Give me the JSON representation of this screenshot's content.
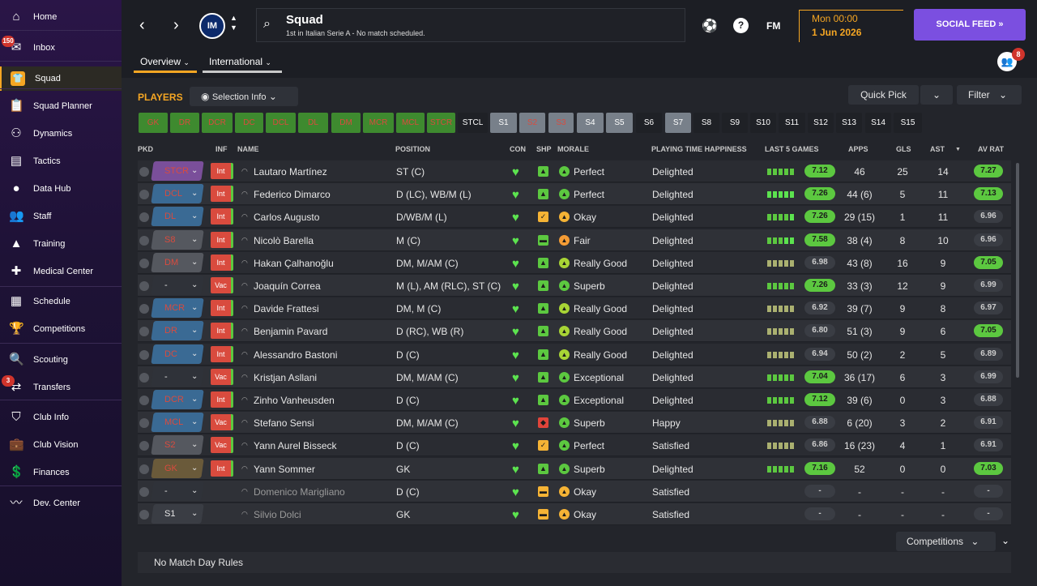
{
  "sidebar": {
    "items": [
      {
        "label": "Home",
        "icon": "home-icon",
        "glyph": "⌂"
      },
      {
        "label": "Inbox",
        "icon": "inbox-icon",
        "glyph": "✉",
        "badge": "150"
      },
      {
        "label": "Squad",
        "icon": "squad-icon",
        "glyph": "👕",
        "active": true
      },
      {
        "label": "Squad Planner",
        "icon": "clipboard-icon",
        "glyph": "📋"
      },
      {
        "label": "Dynamics",
        "icon": "dynamics-icon",
        "glyph": "⚇"
      },
      {
        "label": "Tactics",
        "icon": "tactics-icon",
        "glyph": "▤"
      },
      {
        "label": "Data Hub",
        "icon": "data-hub-icon",
        "glyph": "●"
      },
      {
        "label": "Staff",
        "icon": "staff-icon",
        "glyph": "👥"
      },
      {
        "label": "Training",
        "icon": "training-icon",
        "glyph": "▲"
      },
      {
        "label": "Medical Center",
        "icon": "medical-icon",
        "glyph": "✚"
      },
      {
        "label": "Schedule",
        "icon": "schedule-icon",
        "glyph": "▦"
      },
      {
        "label": "Competitions",
        "icon": "trophy-icon",
        "glyph": "🏆"
      },
      {
        "label": "Scouting",
        "icon": "scouting-icon",
        "glyph": "🔍"
      },
      {
        "label": "Transfers",
        "icon": "transfers-icon",
        "glyph": "⇄",
        "badge": "3"
      },
      {
        "label": "Club Info",
        "icon": "shield-icon",
        "glyph": "⛉"
      },
      {
        "label": "Club Vision",
        "icon": "briefcase-icon",
        "glyph": "💼"
      },
      {
        "label": "Finances",
        "icon": "finances-icon",
        "glyph": "💲"
      },
      {
        "label": "Dev. Center",
        "icon": "dev-center-icon",
        "glyph": "〰"
      }
    ]
  },
  "topbar": {
    "title": "Squad",
    "subtitle": "1st in Italian Serie A - No match scheduled.",
    "club_badge": "IM",
    "fm_label": "FM",
    "day_time": "Mon 00:00",
    "date": "1 Jun 2026",
    "social_feed": "SOCIAL FEED",
    "notifications_badge": "8",
    "tabs": [
      "Overview",
      "International"
    ]
  },
  "toolbar": {
    "players_label": "PLAYERS",
    "selection_info": "Selection Info",
    "quick_pick": "Quick Pick",
    "filter": "Filter"
  },
  "positions": [
    {
      "label": "GK",
      "style": "green"
    },
    {
      "label": "DR",
      "style": "green"
    },
    {
      "label": "DCR",
      "style": "green"
    },
    {
      "label": "DC",
      "style": "green"
    },
    {
      "label": "DCL",
      "style": "green"
    },
    {
      "label": "DL",
      "style": "green"
    },
    {
      "label": "DM",
      "style": "green"
    },
    {
      "label": "MCR",
      "style": "green"
    },
    {
      "label": "MCL",
      "style": "green"
    },
    {
      "label": "STCR",
      "style": "green"
    },
    {
      "label": "STCL",
      "style": "dark"
    },
    {
      "label": "S1",
      "style": "grey"
    },
    {
      "label": "S2",
      "style": "grey-red"
    },
    {
      "label": "S3",
      "style": "grey-red"
    },
    {
      "label": "S4",
      "style": "grey"
    },
    {
      "label": "S5",
      "style": "grey"
    },
    {
      "label": "S6",
      "style": "dark"
    },
    {
      "label": "S7",
      "style": "grey"
    },
    {
      "label": "S8",
      "style": "dark"
    },
    {
      "label": "S9",
      "style": "dark"
    },
    {
      "label": "S10",
      "style": "dark"
    },
    {
      "label": "S11",
      "style": "dark"
    },
    {
      "label": "S12",
      "style": "dark"
    },
    {
      "label": "S13",
      "style": "dark"
    },
    {
      "label": "S14",
      "style": "dark"
    },
    {
      "label": "S15",
      "style": "dark"
    }
  ],
  "columns": [
    "PKD",
    "INF",
    "NAME",
    "POSITION",
    "CON",
    "SHP",
    "MORALE",
    "PLAYING TIME HAPPINESS",
    "LAST 5 GAMES",
    "APPS",
    "GLS",
    "AST",
    "AV RAT"
  ],
  "players": [
    {
      "pkd": "STCR",
      "pkd_color": "#7a4f9a",
      "inf": "Int",
      "name": "Lautaro Martínez",
      "position": "ST (C)",
      "shp": "green",
      "morale": "Perfect",
      "morale_color": "#5cc840",
      "happiness": "Delighted",
      "last5": [
        1,
        1,
        1,
        1,
        1
      ],
      "last_rating": "7.12",
      "rating_green": true,
      "apps": "46",
      "gls": "25",
      "ast": "14",
      "avrat": "7.27",
      "avrat_green": true
    },
    {
      "pkd": "DCL",
      "pkd_color": "#3a6a94",
      "inf": "Int",
      "name": "Federico Dimarco",
      "position": "D (LC), WB/M (L)",
      "shp": "green",
      "morale": "Perfect",
      "morale_color": "#5cc840",
      "happiness": "Delighted",
      "last5": [
        2,
        2,
        2,
        2,
        2
      ],
      "last_rating": "7.26",
      "rating_green": true,
      "apps": "44 (6)",
      "gls": "5",
      "ast": "11",
      "avrat": "7.13",
      "avrat_green": true
    },
    {
      "pkd": "DL",
      "pkd_color": "#3a6a94",
      "inf": "Int",
      "name": "Carlos Augusto",
      "position": "D/WB/M (L)",
      "shp": "yellow",
      "morale": "Okay",
      "morale_color": "#f5b335",
      "happiness": "Delighted",
      "last5": [
        1,
        1,
        1,
        1,
        2
      ],
      "last_rating": "7.26",
      "rating_green": true,
      "apps": "29 (15)",
      "gls": "1",
      "ast": "11",
      "avrat": "6.96",
      "avrat_green": false
    },
    {
      "pkd": "S8",
      "pkd_color": "#55585f",
      "inf": "Int",
      "name": "Nicolò Barella",
      "position": "M (C)",
      "shp": "green-dash",
      "morale": "Fair",
      "morale_color": "#f59c35",
      "happiness": "Delighted",
      "last5": [
        1,
        1,
        1,
        2,
        2
      ],
      "last_rating": "7.58",
      "rating_green": true,
      "apps": "38 (4)",
      "gls": "8",
      "ast": "10",
      "avrat": "6.96",
      "avrat_green": false
    },
    {
      "pkd": "DM",
      "pkd_color": "#55585f",
      "inf": "Int",
      "name": "Hakan Çalhanoğlu",
      "position": "DM, M/AM (C)",
      "shp": "green",
      "morale": "Really Good",
      "morale_color": "#a8d435",
      "happiness": "Delighted",
      "last5": [
        0,
        0,
        0,
        0,
        0
      ],
      "last_rating": "6.98",
      "rating_green": false,
      "apps": "43 (8)",
      "gls": "16",
      "ast": "9",
      "avrat": "7.05",
      "avrat_green": true
    },
    {
      "pkd": "-",
      "pkd_color": "#2f3239",
      "inf": "Vac",
      "name": "Joaquín Correa",
      "position": "M (L), AM (RLC), ST (C)",
      "shp": "green",
      "morale": "Superb",
      "morale_color": "#5cc840",
      "happiness": "Delighted",
      "last5": [
        1,
        1,
        1,
        1,
        1
      ],
      "last_rating": "7.26",
      "rating_green": true,
      "apps": "33 (3)",
      "gls": "12",
      "ast": "9",
      "avrat": "6.99",
      "avrat_green": false
    },
    {
      "pkd": "MCR",
      "pkd_color": "#3a6a94",
      "inf": "Int",
      "name": "Davide Frattesi",
      "position": "DM, M (C)",
      "shp": "green",
      "morale": "Really Good",
      "morale_color": "#a8d435",
      "happiness": "Delighted",
      "last5": [
        0,
        0,
        0,
        0,
        0
      ],
      "last_rating": "6.92",
      "rating_green": false,
      "apps": "39 (7)",
      "gls": "9",
      "ast": "8",
      "avrat": "6.97",
      "avrat_green": false
    },
    {
      "pkd": "DR",
      "pkd_color": "#3a6a94",
      "inf": "Int",
      "name": "Benjamin Pavard",
      "position": "D (RC), WB (R)",
      "shp": "green",
      "morale": "Really Good",
      "morale_color": "#a8d435",
      "happiness": "Delighted",
      "last5": [
        0,
        0,
        0,
        0,
        0
      ],
      "last_rating": "6.80",
      "rating_green": false,
      "apps": "51 (3)",
      "gls": "9",
      "ast": "6",
      "avrat": "7.05",
      "avrat_green": true
    },
    {
      "pkd": "DC",
      "pkd_color": "#3a6a94",
      "inf": "Int",
      "name": "Alessandro Bastoni",
      "position": "D (C)",
      "shp": "green",
      "morale": "Really Good",
      "morale_color": "#a8d435",
      "happiness": "Delighted",
      "last5": [
        0,
        0,
        0,
        0,
        0
      ],
      "last_rating": "6.94",
      "rating_green": false,
      "apps": "50 (2)",
      "gls": "2",
      "ast": "5",
      "avrat": "6.89",
      "avrat_green": false
    },
    {
      "pkd": "-",
      "pkd_color": "#2f3239",
      "inf": "Vac",
      "name": "Kristjan Asllani",
      "position": "DM, M/AM (C)",
      "shp": "green",
      "morale": "Exceptional",
      "morale_color": "#5cc840",
      "happiness": "Delighted",
      "last5": [
        1,
        1,
        1,
        1,
        1
      ],
      "last_rating": "7.04",
      "rating_green": true,
      "apps": "36 (17)",
      "gls": "6",
      "ast": "3",
      "avrat": "6.99",
      "avrat_green": false
    },
    {
      "pkd": "DCR",
      "pkd_color": "#3a6a94",
      "inf": "Int",
      "name": "Zinho Vanheusden",
      "position": "D (C)",
      "shp": "green",
      "morale": "Exceptional",
      "morale_color": "#5cc840",
      "happiness": "Delighted",
      "last5": [
        1,
        1,
        1,
        1,
        1
      ],
      "last_rating": "7.12",
      "rating_green": true,
      "apps": "39 (6)",
      "gls": "0",
      "ast": "3",
      "avrat": "6.88",
      "avrat_green": false
    },
    {
      "pkd": "MCL",
      "pkd_color": "#3a6a94",
      "inf": "Vac",
      "name": "Stefano Sensi",
      "position": "DM, M/AM (C)",
      "shp": "red",
      "morale": "Superb",
      "morale_color": "#5cc840",
      "happiness": "Happy",
      "last5": [
        0,
        0,
        0,
        0,
        0
      ],
      "last_rating": "6.88",
      "rating_green": false,
      "apps": "6 (20)",
      "gls": "3",
      "ast": "2",
      "avrat": "6.91",
      "avrat_green": false
    },
    {
      "pkd": "S2",
      "pkd_color": "#55585f",
      "inf": "Vac",
      "name": "Yann Aurel Bisseck",
      "position": "D (C)",
      "shp": "yellow",
      "morale": "Perfect",
      "morale_color": "#5cc840",
      "happiness": "Satisfied",
      "last5": [
        0,
        0,
        0,
        0,
        0
      ],
      "last_rating": "6.86",
      "rating_green": false,
      "apps": "16 (23)",
      "gls": "4",
      "ast": "1",
      "avrat": "6.91",
      "avrat_green": false
    },
    {
      "pkd": "GK",
      "pkd_color": "#6a5a3a",
      "inf": "Int",
      "name": "Yann Sommer",
      "position": "GK",
      "shp": "green",
      "morale": "Superb",
      "morale_color": "#5cc840",
      "happiness": "Delighted",
      "last5": [
        1,
        1,
        1,
        1,
        1
      ],
      "last_rating": "7.16",
      "rating_green": true,
      "apps": "52",
      "gls": "0",
      "ast": "0",
      "avrat": "7.03",
      "avrat_green": true
    },
    {
      "pkd": "-",
      "pkd_color": "#2f3239",
      "inf": "",
      "name": "Domenico Marigliano",
      "position": "D (C)",
      "shp": "orange-dash",
      "morale": "Okay",
      "morale_color": "#f5b335",
      "happiness": "Satisfied",
      "last5": [],
      "last_rating": "-",
      "rating_green": false,
      "apps": "-",
      "gls": "-",
      "ast": "-",
      "avrat": "-",
      "avrat_green": false,
      "dim": true
    },
    {
      "pkd": "S1",
      "pkd_color": "#3a3d44",
      "inf": "",
      "name": "Silvio Dolci",
      "position": "GK",
      "shp": "orange-dash",
      "morale": "Okay",
      "morale_color": "#f5b335",
      "happiness": "Satisfied",
      "last5": [],
      "last_rating": "-",
      "rating_green": false,
      "apps": "-",
      "gls": "-",
      "ast": "-",
      "avrat": "-",
      "avrat_green": false,
      "dim": true
    }
  ],
  "footer": {
    "competitions": "Competitions",
    "match_day_rules": "No Match Day Rules"
  }
}
